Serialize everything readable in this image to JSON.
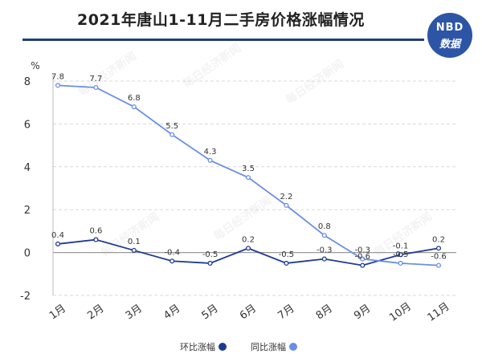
{
  "header": {
    "title": "2021年唐山1-11月二手房价格涨幅情况",
    "logo_top": "NBD",
    "logo_bottom": "数据"
  },
  "watermark": "每日经济新闻",
  "colors": {
    "mom": "#1f3a93",
    "yoy": "#6b8fe6",
    "grid": "#d9d9d9",
    "title_rule": "#1f3f7a",
    "logo_bg": "#2d55a6"
  },
  "chart_data": {
    "type": "line",
    "title": "2021年唐山1-11月二手房价格涨幅情况",
    "ylabel": "%",
    "xlabel": "",
    "ylim": [
      -2,
      8
    ],
    "yticks": [
      -2,
      0,
      2,
      4,
      6,
      8
    ],
    "grid": true,
    "legend_position": "bottom-center",
    "categories": [
      "1月",
      "2月",
      "3月",
      "4月",
      "5月",
      "6月",
      "7月",
      "8月",
      "9月",
      "10月",
      "11月"
    ],
    "series": [
      {
        "name": "环比涨幅",
        "color": "#1f3a93",
        "values": [
          0.4,
          0.6,
          0.1,
          -0.4,
          -0.5,
          0.2,
          -0.5,
          -0.3,
          -0.6,
          -0.1,
          0.2
        ]
      },
      {
        "name": "同比涨幅",
        "color": "#6b8fe6",
        "values": [
          7.8,
          7.7,
          6.8,
          5.5,
          4.3,
          3.5,
          2.2,
          0.8,
          -0.3,
          -0.5,
          -0.6
        ]
      }
    ]
  }
}
